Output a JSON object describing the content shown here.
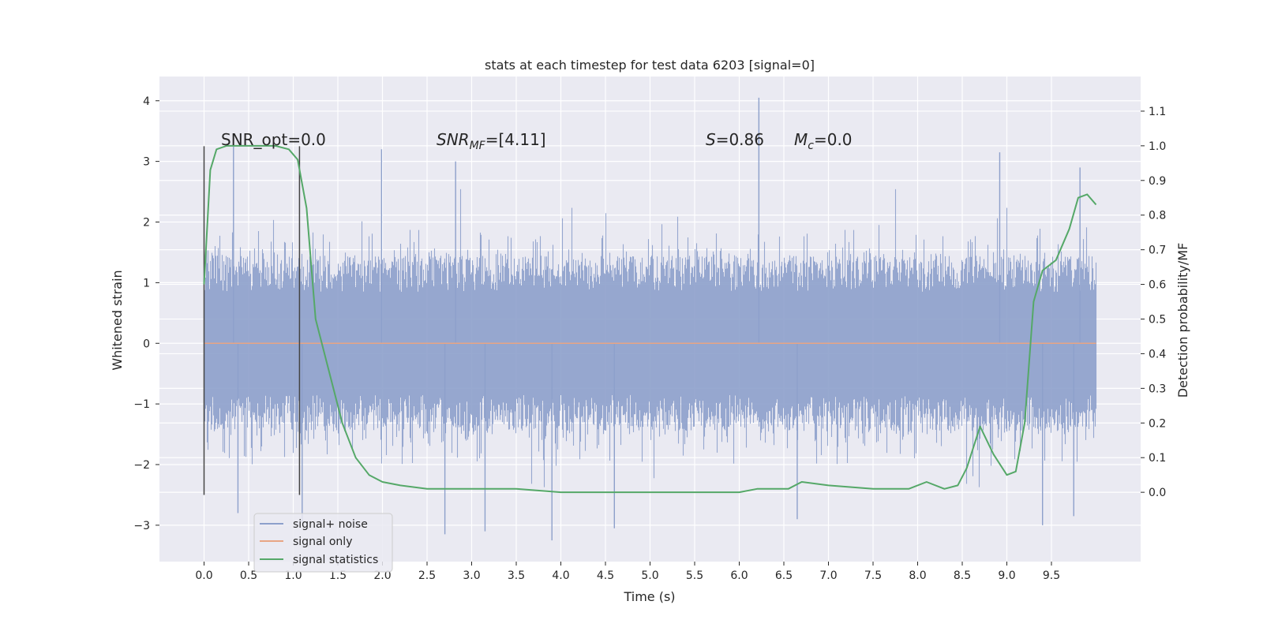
{
  "chart_data": {
    "type": "line",
    "title": "stats at each timestep for test data 6203 [signal=0]",
    "xlabel": "Time (s)",
    "ylabel_left": "Whitened strain",
    "ylabel_right": "Detection probability/MF",
    "xlim": [
      -0.5,
      10.5
    ],
    "ylim_left": [
      -3.6,
      4.4
    ],
    "ylim_right": [
      -0.2,
      1.2
    ],
    "x_ticks": [
      "0.0",
      "0.5",
      "1.0",
      "1.5",
      "2.0",
      "2.5",
      "3.0",
      "3.5",
      "4.0",
      "4.5",
      "5.0",
      "5.5",
      "6.0",
      "6.5",
      "7.0",
      "7.5",
      "8.0",
      "8.5",
      "9.0",
      "9.5"
    ],
    "y_ticks_left": [
      "−3",
      "−2",
      "−1",
      "0",
      "1",
      "2",
      "3",
      "4"
    ],
    "y_ticks_right": [
      "0.0",
      "0.1",
      "0.2",
      "0.3",
      "0.4",
      "0.5",
      "0.6",
      "0.7",
      "0.8",
      "0.9",
      "1.0",
      "1.1"
    ],
    "grid": true,
    "background": "#eaeaf2",
    "legend_position": "lower-left",
    "annotations": [
      {
        "parts": [
          {
            "t": "SNR_opt=0.0"
          }
        ]
      },
      {
        "parts": [
          {
            "t": "SNR",
            "i": true
          },
          {
            "t": "MF",
            "i": true,
            "sub": true
          },
          {
            "t": "=[4.11]"
          }
        ]
      },
      {
        "parts": [
          {
            "t": "S",
            "i": true
          },
          {
            "t": "=0.86"
          }
        ]
      },
      {
        "parts": [
          {
            "t": "M",
            "i": true
          },
          {
            "t": "c",
            "i": true,
            "sub": true
          },
          {
            "t": "=0.0"
          }
        ]
      }
    ],
    "marker_lines": [
      {
        "x": 0.0,
        "y0": -2.5,
        "y1": 3.25
      },
      {
        "x": 1.07,
        "y0": -2.5,
        "y1": 3.25
      }
    ],
    "series": [
      {
        "name": "signal+ noise",
        "color": "#8da0cb",
        "style": "noise",
        "x_range": [
          0.0,
          10.0
        ],
        "typical_amplitude": 1.0,
        "spikes": [
          {
            "x": 0.33,
            "y": 3.3
          },
          {
            "x": 1.99,
            "y": 3.2
          },
          {
            "x": 2.82,
            "y": 3.0
          },
          {
            "x": 6.22,
            "y": 4.05
          },
          {
            "x": 8.92,
            "y": 3.15
          },
          {
            "x": 9.82,
            "y": 2.9
          },
          {
            "x": 0.38,
            "y": -2.8
          },
          {
            "x": 1.1,
            "y": -2.95
          },
          {
            "x": 2.7,
            "y": -3.15
          },
          {
            "x": 3.15,
            "y": -3.1
          },
          {
            "x": 3.9,
            "y": -3.25
          },
          {
            "x": 4.6,
            "y": -3.05
          },
          {
            "x": 9.4,
            "y": -3.0
          },
          {
            "x": 9.75,
            "y": -2.85
          },
          {
            "x": 6.65,
            "y": -2.9
          }
        ]
      },
      {
        "name": "signal only",
        "color": "#e8a584",
        "x": [
          0.0,
          10.0
        ],
        "y": [
          0.0,
          0.0
        ]
      },
      {
        "name": "signal statistics",
        "color": "#55a868",
        "axis": "right",
        "x": [
          0.0,
          0.07,
          0.14,
          0.25,
          0.4,
          0.6,
          0.8,
          0.95,
          1.05,
          1.15,
          1.25,
          1.4,
          1.55,
          1.7,
          1.85,
          2.0,
          2.2,
          2.5,
          3.0,
          3.5,
          4.0,
          4.5,
          5.0,
          5.5,
          6.0,
          6.2,
          6.4,
          6.55,
          6.7,
          7.0,
          7.5,
          7.9,
          8.1,
          8.3,
          8.45,
          8.55,
          8.7,
          8.85,
          9.0,
          9.1,
          9.2,
          9.3,
          9.4,
          9.55,
          9.7,
          9.8,
          9.9,
          10.0
        ],
        "y": [
          0.6,
          0.93,
          0.99,
          1.0,
          1.0,
          1.0,
          1.0,
          0.99,
          0.96,
          0.82,
          0.5,
          0.35,
          0.2,
          0.1,
          0.05,
          0.03,
          0.02,
          0.01,
          0.01,
          0.01,
          0.0,
          0.0,
          0.0,
          0.0,
          0.0,
          0.01,
          0.01,
          0.01,
          0.03,
          0.02,
          0.01,
          0.01,
          0.03,
          0.01,
          0.02,
          0.07,
          0.19,
          0.11,
          0.05,
          0.06,
          0.2,
          0.55,
          0.64,
          0.67,
          0.76,
          0.85,
          0.86,
          0.83
        ]
      }
    ]
  }
}
